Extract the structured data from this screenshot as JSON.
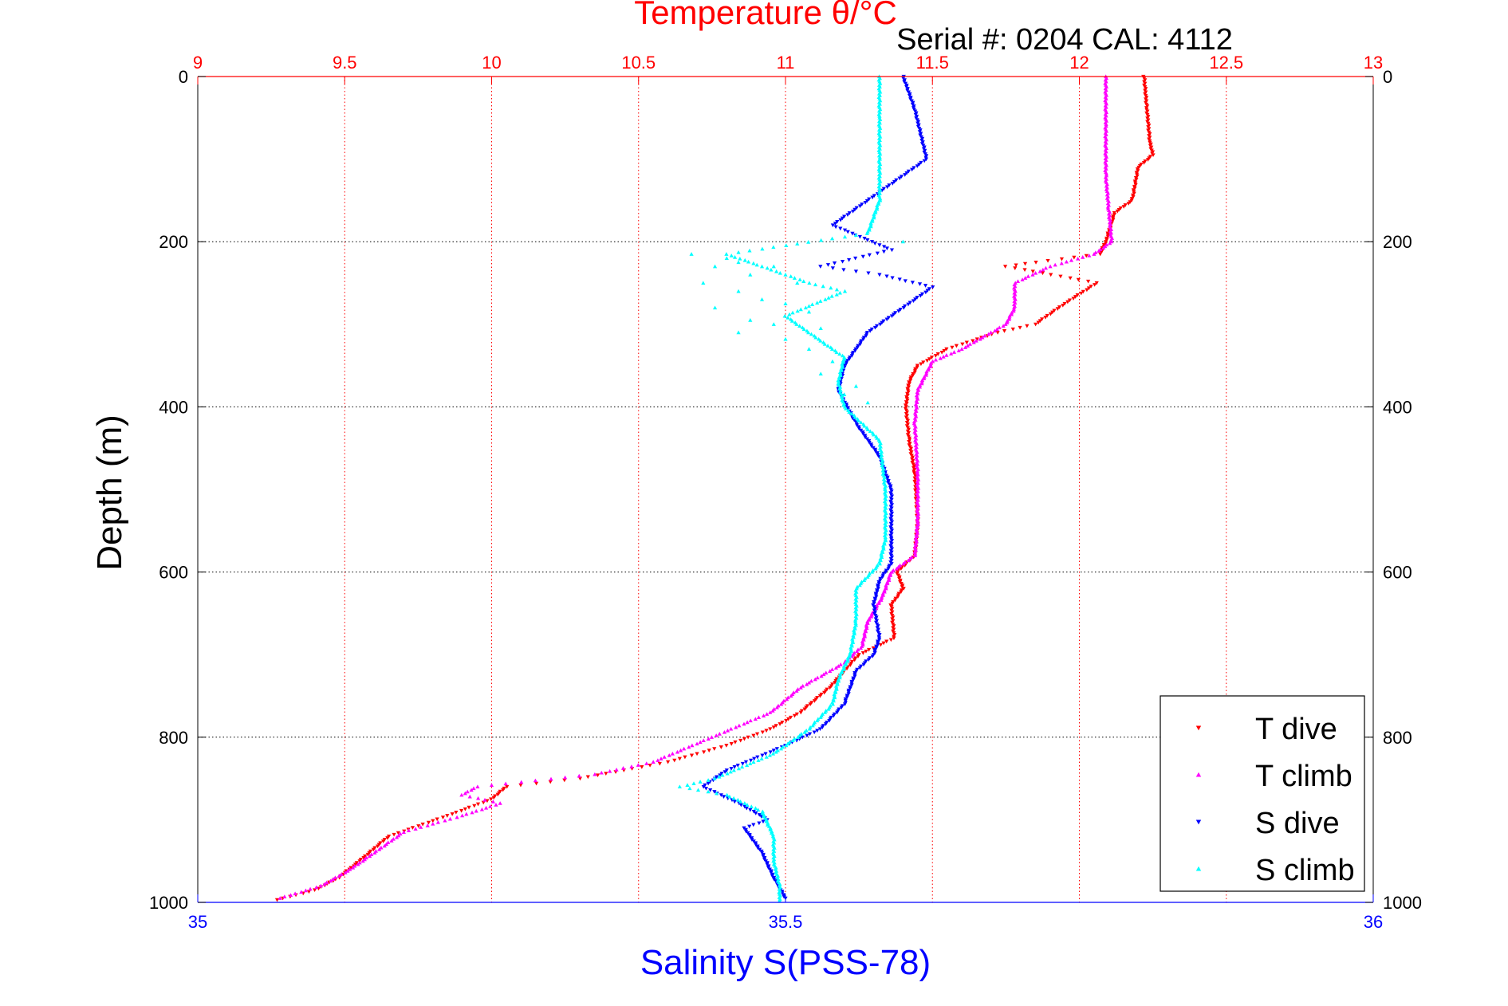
{
  "chart_data": {
    "type": "scatter",
    "title": "Temperature θ/°C",
    "subtitle": "Serial #: 0204  CAL: 4112",
    "xlabel": "Salinity S(PSS-78)",
    "ylabel": "Depth (m)",
    "top_axis": {
      "label": "Temperature θ/°C",
      "range": [
        9,
        13
      ],
      "ticks": [
        "9",
        "9.5",
        "10",
        "10.5",
        "11",
        "11.5",
        "12",
        "12.5",
        "13"
      ]
    },
    "bottom_axis": {
      "label": "Salinity S(PSS-78)",
      "range": [
        35,
        36
      ],
      "ticks": [
        "35",
        "35.5",
        "36"
      ]
    },
    "depth_axis": {
      "range": [
        0,
        1000
      ],
      "reversed": true,
      "ticks": [
        "0",
        "200",
        "400",
        "600",
        "800",
        "1000"
      ]
    },
    "grid": true,
    "legend_position": "bottom-right",
    "series": [
      {
        "name": "T dive",
        "axis": "temperature",
        "color": "#ff0000",
        "marker": "triangle-down",
        "points": [
          [
            12.22,
            0
          ],
          [
            12.23,
            40
          ],
          [
            12.24,
            80
          ],
          [
            12.25,
            95
          ],
          [
            12.2,
            110
          ],
          [
            12.18,
            150
          ],
          [
            12.12,
            165
          ],
          [
            12.09,
            200
          ],
          [
            12.07,
            215
          ],
          [
            11.85,
            225
          ],
          [
            11.75,
            230
          ],
          [
            12.06,
            250
          ],
          [
            11.95,
            275
          ],
          [
            11.85,
            300
          ],
          [
            11.72,
            310
          ],
          [
            11.55,
            330
          ],
          [
            11.45,
            350
          ],
          [
            11.42,
            370
          ],
          [
            11.41,
            400
          ],
          [
            11.42,
            440
          ],
          [
            11.44,
            480
          ],
          [
            11.45,
            540
          ],
          [
            11.44,
            580
          ],
          [
            11.38,
            600
          ],
          [
            11.4,
            620
          ],
          [
            11.36,
            640
          ],
          [
            11.37,
            680
          ],
          [
            11.25,
            700
          ],
          [
            11.15,
            740
          ],
          [
            11.05,
            770
          ],
          [
            10.95,
            790
          ],
          [
            10.8,
            810
          ],
          [
            10.6,
            830
          ],
          [
            10.3,
            850
          ],
          [
            10.05,
            860
          ],
          [
            10.0,
            875
          ],
          [
            9.85,
            895
          ],
          [
            9.65,
            920
          ],
          [
            9.55,
            950
          ],
          [
            9.48,
            970
          ],
          [
            9.4,
            985
          ],
          [
            9.27,
            997
          ]
        ]
      },
      {
        "name": "T climb",
        "axis": "temperature",
        "color": "#ff00ff",
        "marker": "triangle-up",
        "points": [
          [
            12.09,
            0
          ],
          [
            12.09,
            60
          ],
          [
            12.09,
            120
          ],
          [
            12.1,
            160
          ],
          [
            12.11,
            200
          ],
          [
            12.05,
            215
          ],
          [
            11.9,
            230
          ],
          [
            11.78,
            250
          ],
          [
            11.78,
            280
          ],
          [
            11.75,
            300
          ],
          [
            11.6,
            330
          ],
          [
            11.5,
            345
          ],
          [
            11.45,
            380
          ],
          [
            11.44,
            420
          ],
          [
            11.45,
            480
          ],
          [
            11.45,
            540
          ],
          [
            11.44,
            580
          ],
          [
            11.36,
            600
          ],
          [
            11.33,
            630
          ],
          [
            11.28,
            660
          ],
          [
            11.26,
            690
          ],
          [
            11.2,
            710
          ],
          [
            11.05,
            740
          ],
          [
            10.95,
            770
          ],
          [
            10.75,
            800
          ],
          [
            10.55,
            830
          ],
          [
            10.35,
            845
          ],
          [
            9.95,
            860
          ],
          [
            9.9,
            870
          ],
          [
            10.03,
            880
          ],
          [
            9.9,
            895
          ],
          [
            9.7,
            915
          ],
          [
            9.6,
            940
          ],
          [
            9.52,
            960
          ],
          [
            9.42,
            980
          ],
          [
            9.28,
            995
          ]
        ]
      },
      {
        "name": "S dive",
        "axis": "salinity",
        "color": "#0000ff",
        "marker": "triangle-down",
        "points": [
          [
            35.6,
            0
          ],
          [
            35.61,
            40
          ],
          [
            35.62,
            100
          ],
          [
            35.58,
            140
          ],
          [
            35.54,
            180
          ],
          [
            35.59,
            210
          ],
          [
            35.56,
            220
          ],
          [
            35.53,
            230
          ],
          [
            35.58,
            240
          ],
          [
            35.625,
            255
          ],
          [
            35.6,
            280
          ],
          [
            35.57,
            310
          ],
          [
            35.56,
            330
          ],
          [
            35.55,
            350
          ],
          [
            35.545,
            380
          ],
          [
            35.56,
            420
          ],
          [
            35.58,
            460
          ],
          [
            35.59,
            500
          ],
          [
            35.59,
            560
          ],
          [
            35.59,
            590
          ],
          [
            35.58,
            610
          ],
          [
            35.575,
            640
          ],
          [
            35.58,
            680
          ],
          [
            35.575,
            700
          ],
          [
            35.56,
            720
          ],
          [
            35.55,
            760
          ],
          [
            35.53,
            790
          ],
          [
            35.5,
            810
          ],
          [
            35.45,
            840
          ],
          [
            35.43,
            860
          ],
          [
            35.46,
            880
          ],
          [
            35.485,
            900
          ],
          [
            35.465,
            910
          ],
          [
            35.48,
            940
          ],
          [
            35.49,
            970
          ],
          [
            35.5,
            995
          ]
        ]
      },
      {
        "name": "S climb",
        "axis": "salinity",
        "color": "#00ffff",
        "marker": "triangle-up",
        "points": [
          [
            35.58,
            0
          ],
          [
            35.58,
            50
          ],
          [
            35.58,
            100
          ],
          [
            35.58,
            150
          ],
          [
            35.57,
            190
          ],
          [
            35.45,
            215
          ],
          [
            35.48,
            230
          ],
          [
            35.52,
            250
          ],
          [
            35.55,
            260
          ],
          [
            35.5,
            290
          ],
          [
            35.53,
            320
          ],
          [
            35.55,
            340
          ],
          [
            35.545,
            370
          ],
          [
            35.55,
            400
          ],
          [
            35.58,
            440
          ],
          [
            35.585,
            500
          ],
          [
            35.585,
            560
          ],
          [
            35.58,
            590
          ],
          [
            35.56,
            620
          ],
          [
            35.56,
            660
          ],
          [
            35.555,
            700
          ],
          [
            35.545,
            730
          ],
          [
            35.54,
            760
          ],
          [
            35.52,
            790
          ],
          [
            35.49,
            820
          ],
          [
            35.44,
            850
          ],
          [
            35.41,
            860
          ],
          [
            35.45,
            870
          ],
          [
            35.48,
            890
          ],
          [
            35.49,
            920
          ],
          [
            35.49,
            950
          ],
          [
            35.495,
            980
          ],
          [
            35.495,
            998
          ]
        ]
      },
      {
        "name": "",
        "axis": "salinity",
        "color": "#00ffff",
        "marker": "triangle-up",
        "points": [
          [
            35.42,
            215
          ],
          [
            35.45,
            220
          ],
          [
            35.46,
            225
          ],
          [
            35.49,
            230
          ],
          [
            35.44,
            230
          ],
          [
            35.47,
            240
          ],
          [
            35.43,
            250
          ],
          [
            35.51,
            250
          ],
          [
            35.46,
            260
          ],
          [
            35.48,
            270
          ],
          [
            35.5,
            275
          ],
          [
            35.44,
            280
          ],
          [
            35.52,
            285
          ],
          [
            35.47,
            295
          ],
          [
            35.49,
            300
          ],
          [
            35.53,
            305
          ],
          [
            35.46,
            310
          ],
          [
            35.5,
            318
          ],
          [
            35.52,
            330
          ],
          [
            35.54,
            345
          ],
          [
            35.53,
            360
          ],
          [
            35.56,
            375
          ],
          [
            35.55,
            385
          ],
          [
            35.57,
            395
          ],
          [
            35.6,
            200
          ]
        ]
      }
    ]
  }
}
